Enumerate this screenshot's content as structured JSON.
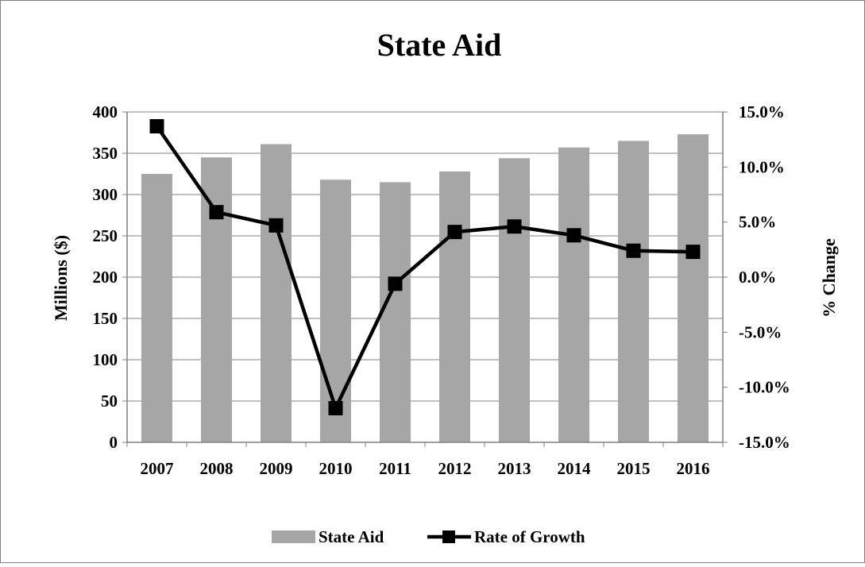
{
  "chart_data": {
    "type": "bar",
    "title": "State Aid",
    "xlabel": "",
    "ylabel": "Millions ($)",
    "y2label": "% Change",
    "categories": [
      "2007",
      "2008",
      "2009",
      "2010",
      "2011",
      "2012",
      "2013",
      "2014",
      "2015",
      "2016"
    ],
    "ylim": [
      0,
      400
    ],
    "y2lim": [
      -15.0,
      15.0
    ],
    "y_ticks": [
      "0",
      "50",
      "100",
      "150",
      "200",
      "250",
      "300",
      "350",
      "400"
    ],
    "y2_ticks": [
      "-15.0%",
      "-10.0%",
      "-5.0%",
      "0.0%",
      "5.0%",
      "10.0%",
      "15.0%"
    ],
    "grid": true,
    "legend_position": "bottom",
    "series": [
      {
        "name": "State Aid",
        "type": "bar",
        "axis": "left",
        "color": "#a6a6a6",
        "values": [
          325,
          345,
          361,
          318,
          315,
          328,
          344,
          357,
          365,
          373
        ]
      },
      {
        "name": "Rate of Growth",
        "type": "line",
        "axis": "right",
        "color": "#000000",
        "marker": "square",
        "values": [
          13.7,
          5.9,
          4.7,
          -11.9,
          -0.6,
          4.1,
          4.6,
          3.8,
          2.4,
          2.3
        ]
      }
    ]
  }
}
